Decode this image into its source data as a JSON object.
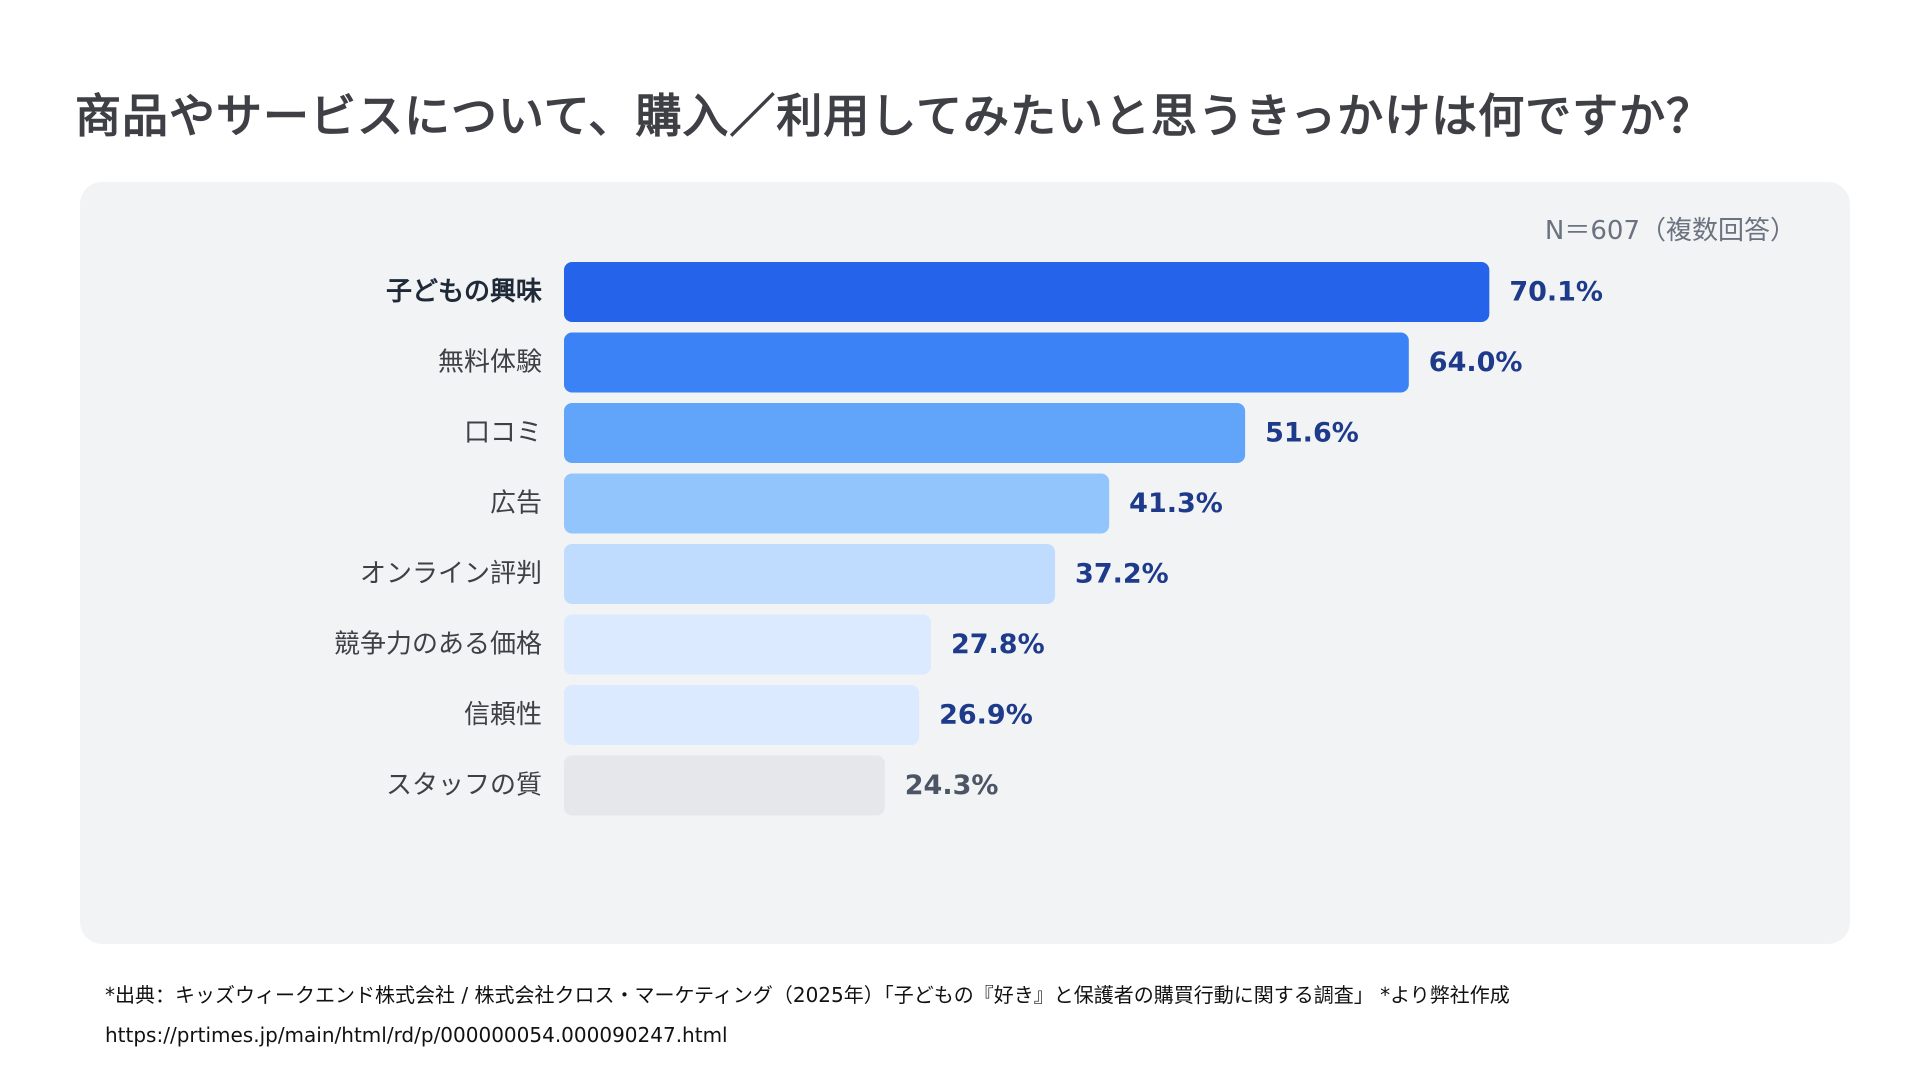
{
  "chart_data": {
    "type": "bar",
    "orientation": "horizontal",
    "title": "商品やサービスについて、購入／利用してみたいと思うきっかけは何ですか？",
    "note": "N＝607（複数回答）",
    "categories": [
      "子どもの興味",
      "無料体験",
      "口コミ",
      "広告",
      "オンライン評判",
      "競争力のある価格",
      "信頼性",
      "スタッフの質"
    ],
    "values": [
      70.1,
      64.0,
      51.6,
      41.3,
      37.2,
      27.8,
      26.9,
      24.3
    ],
    "value_labels": [
      "70.1%",
      "64.0%",
      "51.6%",
      "41.3%",
      "37.2%",
      "27.8%",
      "26.9%",
      "24.3%"
    ],
    "unit": "%",
    "xlim": [
      0,
      100
    ],
    "grid": false,
    "legend": "none",
    "highlight_index": 0,
    "bar_colors": [
      "#2563eb",
      "#3b82f6",
      "#60a5fa",
      "#93c5fd",
      "#bfdbfe",
      "#dbeafe",
      "#dbeafe",
      "#e5e7eb"
    ],
    "label_colors": [
      "#1e3a8a",
      "#1e3a8a",
      "#1e3a8a",
      "#1e3a8a",
      "#1e3a8a",
      "#1e3a8a",
      "#1e3a8a",
      "#4b5563"
    ],
    "category_label_color": "#3f3f46",
    "highlight_label_color": "#1f2937"
  },
  "footer": {
    "source": "*出典：キッズウィークエンド株式会社 / 株式会社クロス・マーケティング（2025年）「子どもの『好き』と保護者の購買行動に関する調査」 *より弊社作成",
    "url": "https://prtimes.jp/main/html/rd/p/000000054.000090247.html"
  }
}
